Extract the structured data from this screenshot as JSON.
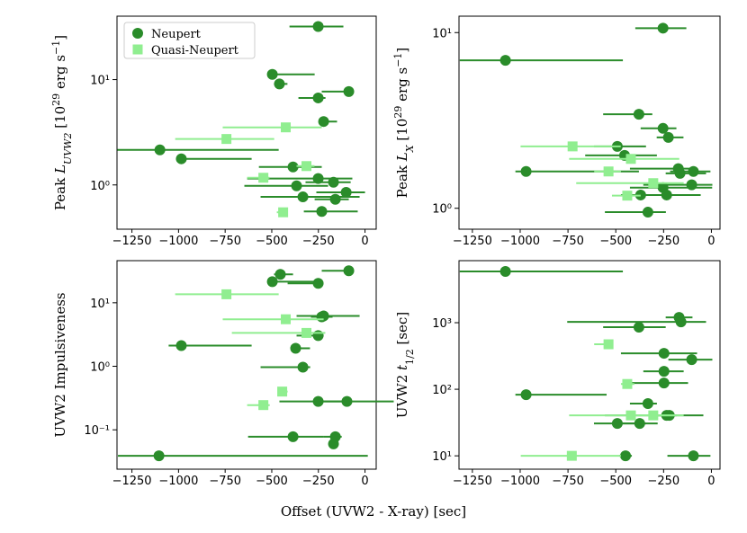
{
  "figure": {
    "xlabel": "Offset (UVW2 - X-ray) [sec]"
  },
  "chart_data": [
    {
      "type": "scatter",
      "yscale": "log",
      "legend": "upper left",
      "ylabel": [
        {
          "text": "Peak "
        },
        {
          "text": "L",
          "style": "italic"
        },
        {
          "text": "UVW2",
          "style": "sub-italic"
        },
        {
          "text": " [10"
        },
        {
          "text": "29",
          "style": "sup"
        },
        {
          "text": " erg s"
        },
        {
          "text": "−1",
          "style": "sup"
        },
        {
          "text": "]"
        }
      ],
      "xlim": [
        -1330,
        60
      ],
      "ylim": [
        0.38,
        40
      ],
      "xticks": [
        {
          "value": -1250,
          "label": "−1250"
        },
        {
          "value": -1000,
          "label": "−1000"
        },
        {
          "value": -750,
          "label": "−750"
        },
        {
          "value": -500,
          "label": "−500"
        },
        {
          "value": -250,
          "label": "−250"
        },
        0
      ],
      "yticks": [
        {
          "value": 1,
          "label": "10⁰"
        },
        {
          "value": 10,
          "label": "10¹"
        }
      ],
      "series": [
        {
          "name": "Neupert",
          "color": "#2a8c2a",
          "marker": "circle",
          "x": [
            -251,
            -497,
            -459,
            -87,
            -251,
            -222,
            -1100,
            -985,
            -386,
            -251,
            -367,
            -169,
            -101,
            -333,
            -159,
            -232
          ],
          "values": [
            31.9,
            11.2,
            9.1,
            7.7,
            6.7,
            4.0,
            2.15,
            1.77,
            1.48,
            1.15,
            0.98,
            1.06,
            0.85,
            0.77,
            0.73,
            0.56
          ],
          "xerr": [
            [
              154,
              135
            ],
            [
              15,
              227
            ],
            [
              29,
              43
            ],
            [
              145,
              24
            ],
            [
              106,
              39
            ],
            [
              24,
              72
            ],
            [
              228,
              637
            ],
            [
              29,
              377
            ],
            [
              183,
              154
            ],
            [
              381,
              183
            ],
            [
              280,
              169
            ],
            [
              150,
              92
            ],
            [
              160,
              101
            ],
            [
              227,
              304
            ],
            [
              111,
              72
            ],
            [
              96,
              193
            ]
          ]
        },
        {
          "name": "Quasi-Neupert",
          "color": "#90ee90",
          "marker": "square",
          "x": [
            -743,
            -425,
            -314,
            -545,
            -439
          ],
          "values": [
            2.73,
            3.52,
            1.51,
            1.17,
            0.55
          ],
          "xerr": [
            [
              275,
              256
            ],
            [
              338,
              193
            ],
            [
              53,
              43
            ],
            [
              87,
              33
            ],
            [
              34,
              24
            ]
          ]
        }
      ]
    },
    {
      "type": "scatter",
      "yscale": "log",
      "ylabel": [
        {
          "text": "Peak "
        },
        {
          "text": "L",
          "style": "italic"
        },
        {
          "text": "X",
          "style": "sub-italic"
        },
        {
          "text": " [10"
        },
        {
          "text": "29",
          "style": "sup"
        },
        {
          "text": " erg s"
        },
        {
          "text": "−1",
          "style": "sup"
        },
        {
          "text": "]"
        }
      ],
      "xlim": [
        -1320,
        45
      ],
      "ylim": [
        0.76,
        12.4
      ],
      "xticks": [
        {
          "value": -1250,
          "label": "−1250"
        },
        {
          "value": -1000,
          "label": "−1000"
        },
        {
          "value": -750,
          "label": "−750"
        },
        {
          "value": -500,
          "label": "−500"
        },
        {
          "value": -250,
          "label": "−250"
        },
        0
      ],
      "yticks": [
        {
          "value": 1,
          "label": "10⁰"
        },
        {
          "value": 10,
          "label": "10¹"
        }
      ],
      "series": [
        {
          "color": "#2a8c2a",
          "marker": "circle",
          "x": [
            -253,
            -1077,
            -379,
            -253,
            -225,
            -492,
            -454,
            -969,
            -173,
            -164,
            -94,
            -103,
            -253,
            -234,
            -370,
            -332
          ],
          "values": [
            10.6,
            6.95,
            3.43,
            2.85,
            2.53,
            2.25,
            2.0,
            1.62,
            1.68,
            1.58,
            1.62,
            1.36,
            1.31,
            1.19,
            1.19,
            0.95
          ],
          "xerr": [
            [
              145,
              122
            ],
            [
              239,
              614
            ],
            [
              187,
              70
            ],
            [
              117,
              70
            ],
            [
              61,
              79
            ],
            [
              122,
              150
            ],
            [
              206,
              169
            ],
            [
              56,
              590
            ],
            [
              253,
              75
            ],
            [
              75,
              136
            ],
            [
              122,
              89
            ],
            [
              253,
              108
            ],
            [
              173,
              257
            ],
            [
              229,
              178
            ],
            [
              103,
              131
            ],
            [
              225,
              94
            ]
          ]
        },
        {
          "color": "#90ee90",
          "marker": "square",
          "x": [
            -726,
            -421,
            -538,
            -304,
            -440
          ],
          "values": [
            2.25,
            1.91,
            1.62,
            1.39,
            1.18
          ],
          "xerr": [
            [
              272,
              252
            ],
            [
              323,
              253
            ],
            [
              75,
              65
            ],
            [
              403,
              159
            ],
            [
              80,
              70
            ]
          ]
        }
      ]
    },
    {
      "type": "scatter",
      "yscale": "log",
      "ylabel": [
        {
          "text": "UVW2 Impulsiveness"
        }
      ],
      "xlim": [
        -1330,
        60
      ],
      "ylim": [
        0.024,
        46
      ],
      "xticks": [
        {
          "value": -1250,
          "label": "−1250"
        },
        {
          "value": -1000,
          "label": "−1000"
        },
        {
          "value": -750,
          "label": "−750"
        },
        {
          "value": -500,
          "label": "−500"
        },
        {
          "value": -250,
          "label": "−250"
        },
        0
      ],
      "yticks": [
        {
          "value": 0.1,
          "label": "10⁻¹"
        },
        {
          "value": 1,
          "label": "10⁰"
        },
        {
          "value": 10,
          "label": "10¹"
        }
      ],
      "series": [
        {
          "color": "#2a8c2a",
          "marker": "circle",
          "x": [
            -87,
            -454,
            -497,
            -251,
            -222,
            -232,
            -251,
            -985,
            -372,
            -333,
            -251,
            -97,
            -386,
            -159,
            -169,
            -1105
          ],
          "values": [
            31.9,
            28,
            21.5,
            20.2,
            6.2,
            6.0,
            3.04,
            2.12,
            1.92,
            0.97,
            0.28,
            0.28,
            0.078,
            0.078,
            0.06,
            0.039
          ],
          "xerr": [
            [
              145,
              24
            ],
            [
              34,
              68
            ],
            [
              24,
              227
            ],
            [
              164,
              5
            ],
            [
              145,
              193
            ],
            [
              58,
              58
            ],
            [
              116,
              29
            ],
            [
              68,
              377
            ],
            [
              19,
              77
            ],
            [
              227,
              39
            ],
            [
              208,
              150
            ],
            [
              135,
              251
            ],
            [
              241,
              164
            ],
            [
              63,
              34
            ],
            [
              10,
              10
            ],
            [
              220,
              1120
            ]
          ]
        },
        {
          "color": "#90ee90",
          "marker": "square",
          "x": [
            -743,
            -425,
            -314,
            -444,
            -545
          ],
          "values": [
            13.6,
            5.5,
            3.35,
            0.4,
            0.245
          ],
          "xerr": [
            [
              275,
              280
            ],
            [
              338,
              203
            ],
            [
              400,
              101
            ],
            [
              19,
              29
            ],
            [
              87,
              34
            ]
          ]
        }
      ]
    },
    {
      "type": "scatter",
      "yscale": "log",
      "ylabel": [
        {
          "text": "UVW2 "
        },
        {
          "text": "t",
          "style": "italic"
        },
        {
          "text": "1/2",
          "style": "sub"
        },
        {
          "text": " [sec]"
        }
      ],
      "xlim": [
        -1320,
        45
      ],
      "ylim": [
        6.3,
        8550
      ],
      "xticks": [
        {
          "value": -1250,
          "label": "−1250"
        },
        {
          "value": -1000,
          "label": "−1000"
        },
        {
          "value": -750,
          "label": "−750"
        },
        {
          "value": -500,
          "label": "−500"
        },
        {
          "value": -250,
          "label": "−250"
        },
        0
      ],
      "yticks": [
        {
          "value": 10,
          "label": "10¹"
        },
        {
          "value": 100,
          "label": "10²"
        },
        {
          "value": 1000,
          "label": "10³"
        }
      ],
      "series": [
        {
          "color": "#2a8c2a",
          "marker": "circle",
          "x": [
            -1077,
            -169,
            -159,
            -379,
            -248,
            -103,
            -248,
            -248,
            -969,
            -332,
            -234,
            -220,
            -492,
            -375,
            -449,
            -94
          ],
          "values": [
            5890,
            1200,
            1030,
            855,
            347,
            279,
            186,
            124,
            83,
            61,
            40.5,
            40.5,
            30.6,
            30.6,
            10,
            10
          ],
          "xerr": [
            [
              239,
              614
            ],
            [
              70,
              70
            ],
            [
              595,
              131
            ],
            [
              187,
              140
            ],
            [
              225,
              173
            ],
            [
              122,
              108
            ],
            [
              108,
              103
            ],
            [
              178,
              126
            ],
            [
              56,
              421
            ],
            [
              94,
              47
            ],
            [
              51,
              52
            ],
            [
              337,
              178
            ],
            [
              122,
              150
            ],
            [
              98,
              94
            ],
            [
              33,
              33
            ],
            [
              136,
              89
            ]
          ]
        },
        {
          "color": "#90ee90",
          "marker": "square",
          "x": [
            -538,
            -440,
            -421,
            -304,
            -730
          ],
          "values": [
            474,
            120,
            40.5,
            40.5,
            10
          ],
          "xerr": [
            [
              75,
              19
            ],
            [
              33,
              37
            ],
            [
              323,
              276
            ],
            [
              122,
              112
            ],
            [
              267,
              257
            ]
          ]
        }
      ]
    }
  ]
}
